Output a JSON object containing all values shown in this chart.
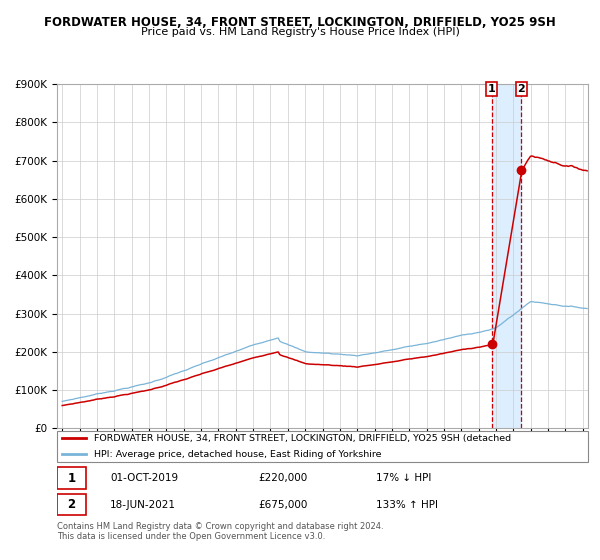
{
  "title": "FORDWATER HOUSE, 34, FRONT STREET, LOCKINGTON, DRIFFIELD, YO25 9SH",
  "subtitle": "Price paid vs. HM Land Registry's House Price Index (HPI)",
  "hpi_label": "HPI: Average price, detached house, East Riding of Yorkshire",
  "property_label": "FORDWATER HOUSE, 34, FRONT STREET, LOCKINGTON, DRIFFIELD, YO25 9SH (detached",
  "sale1_date": "01-OCT-2019",
  "sale1_price": 220000,
  "sale1_pct": "17% ↓ HPI",
  "sale2_date": "18-JUN-2021",
  "sale2_price": 675000,
  "sale2_pct": "133% ↑ HPI",
  "footer": "Contains HM Land Registry data © Crown copyright and database right 2024.\nThis data is licensed under the Open Government Licence v3.0.",
  "hpi_color": "#7ab4d8",
  "property_color": "#cc0000",
  "dashed_line_color": "#cc0000",
  "highlight_color": "#ddeeff",
  "grid_color": "#cccccc",
  "ylim": [
    0,
    900000
  ],
  "yticks": [
    0,
    100000,
    200000,
    300000,
    400000,
    500000,
    600000,
    700000,
    800000,
    900000
  ],
  "start_year": 1995,
  "end_year": 2025,
  "sale1_year": 2019.75,
  "sale2_year": 2021.46
}
